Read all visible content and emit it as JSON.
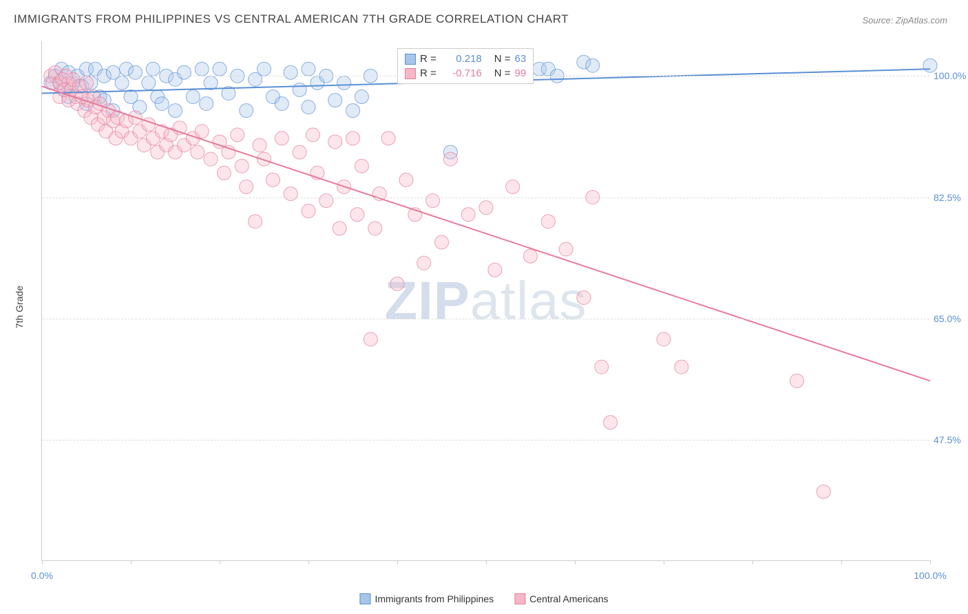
{
  "title": "IMMIGRANTS FROM PHILIPPINES VS CENTRAL AMERICAN 7TH GRADE CORRELATION CHART",
  "source_prefix": "Source: ",
  "source": "ZipAtlas.com",
  "y_axis_label": "7th Grade",
  "watermark_bold": "ZIP",
  "watermark_rest": "atlas",
  "chart": {
    "type": "scatter-with-regression",
    "background_color": "#ffffff",
    "grid_color": "#dddddd",
    "axis_color": "#cccccc",
    "label_color": "#5a8fd6",
    "xlim": [
      0,
      100
    ],
    "ylim": [
      30,
      105
    ],
    "x_ticks": [
      0,
      10,
      20,
      30,
      40,
      50,
      60,
      70,
      80,
      90,
      100
    ],
    "x_tick_labels": {
      "0": "0.0%",
      "100": "100.0%"
    },
    "y_gridlines": [
      47.5,
      65.0,
      82.5,
      100.0
    ],
    "y_tick_labels": {
      "47.5": "47.5%",
      "65.0": "65.0%",
      "82.5": "82.5%",
      "100.0": "100.0%"
    },
    "marker_radius": 10,
    "marker_opacity": 0.35,
    "line_width": 2,
    "series": [
      {
        "name": "Immigrants from Philippines",
        "color": "#5a8fd6",
        "fill": "#a8c5e8",
        "R": "0.218",
        "N": "63",
        "regression": {
          "x1": 0,
          "y1": 97.5,
          "x2": 100,
          "y2": 101.0
        },
        "points": [
          [
            1,
            99
          ],
          [
            1.5,
            100
          ],
          [
            2,
            99
          ],
          [
            2.2,
            101
          ],
          [
            2.5,
            98
          ],
          [
            3,
            100.5
          ],
          [
            3,
            97
          ],
          [
            3.5,
            99
          ],
          [
            4,
            100
          ],
          [
            4.5,
            98.5
          ],
          [
            5,
            101
          ],
          [
            5,
            96
          ],
          [
            5.5,
            99
          ],
          [
            6,
            101
          ],
          [
            6.5,
            97
          ],
          [
            7,
            100
          ],
          [
            7,
            96.5
          ],
          [
            8,
            100.5
          ],
          [
            8,
            95
          ],
          [
            9,
            99
          ],
          [
            9.5,
            101
          ],
          [
            10,
            97
          ],
          [
            10.5,
            100.5
          ],
          [
            11,
            95.5
          ],
          [
            12,
            99
          ],
          [
            12.5,
            101
          ],
          [
            13,
            97
          ],
          [
            13.5,
            96
          ],
          [
            14,
            100
          ],
          [
            15,
            99.5
          ],
          [
            15,
            95
          ],
          [
            16,
            100.5
          ],
          [
            17,
            97
          ],
          [
            18,
            101
          ],
          [
            18.5,
            96
          ],
          [
            19,
            99
          ],
          [
            20,
            101
          ],
          [
            21,
            97.5
          ],
          [
            22,
            100
          ],
          [
            23,
            95
          ],
          [
            24,
            99.5
          ],
          [
            25,
            101
          ],
          [
            26,
            97
          ],
          [
            27,
            96
          ],
          [
            28,
            100.5
          ],
          [
            29,
            98
          ],
          [
            30,
            101
          ],
          [
            30,
            95.5
          ],
          [
            31,
            99
          ],
          [
            32,
            100
          ],
          [
            33,
            96.5
          ],
          [
            34,
            99
          ],
          [
            35,
            95
          ],
          [
            36,
            97
          ],
          [
            37,
            100
          ],
          [
            46,
            89
          ],
          [
            56,
            101
          ],
          [
            57,
            101
          ],
          [
            58,
            100
          ],
          [
            61,
            102
          ],
          [
            62,
            101.5
          ],
          [
            100,
            101.5
          ]
        ]
      },
      {
        "name": "Central Americans",
        "color": "#e67a9a",
        "fill": "#f5b8c9",
        "R": "-0.716",
        "N": "99",
        "regression": {
          "x1": 0,
          "y1": 98.5,
          "x2": 100,
          "y2": 56.0
        },
        "points": [
          [
            1,
            100
          ],
          [
            1.2,
            99
          ],
          [
            1.5,
            100.5
          ],
          [
            2,
            99
          ],
          [
            2,
            97
          ],
          [
            2.3,
            99.5
          ],
          [
            2.5,
            98
          ],
          [
            2.7,
            100
          ],
          [
            3,
            99
          ],
          [
            3,
            96.5
          ],
          [
            3.3,
            98
          ],
          [
            3.5,
            99.5
          ],
          [
            3.8,
            97
          ],
          [
            4,
            96
          ],
          [
            4.2,
            98.5
          ],
          [
            4.5,
            97
          ],
          [
            4.8,
            95
          ],
          [
            5,
            99
          ],
          [
            5.2,
            96.5
          ],
          [
            5.5,
            94
          ],
          [
            5.8,
            97
          ],
          [
            6,
            95.5
          ],
          [
            6.3,
            93
          ],
          [
            6.5,
            96
          ],
          [
            7,
            94
          ],
          [
            7.2,
            92
          ],
          [
            7.5,
            95
          ],
          [
            8,
            93.5
          ],
          [
            8.3,
            91
          ],
          [
            8.5,
            94
          ],
          [
            9,
            92
          ],
          [
            9.5,
            93.5
          ],
          [
            10,
            91
          ],
          [
            10.5,
            94
          ],
          [
            11,
            92
          ],
          [
            11.5,
            90
          ],
          [
            12,
            93
          ],
          [
            12.5,
            91
          ],
          [
            13,
            89
          ],
          [
            13.5,
            92
          ],
          [
            14,
            90
          ],
          [
            14.5,
            91.5
          ],
          [
            15,
            89
          ],
          [
            15.5,
            92.5
          ],
          [
            16,
            90
          ],
          [
            17,
            91
          ],
          [
            17.5,
            89
          ],
          [
            18,
            92
          ],
          [
            19,
            88
          ],
          [
            20,
            90.5
          ],
          [
            20.5,
            86
          ],
          [
            21,
            89
          ],
          [
            22,
            91.5
          ],
          [
            22.5,
            87
          ],
          [
            23,
            84
          ],
          [
            24,
            79
          ],
          [
            24.5,
            90
          ],
          [
            25,
            88
          ],
          [
            26,
            85
          ],
          [
            27,
            91
          ],
          [
            28,
            83
          ],
          [
            29,
            89
          ],
          [
            30,
            80.5
          ],
          [
            30.5,
            91.5
          ],
          [
            31,
            86
          ],
          [
            32,
            82
          ],
          [
            33,
            90.5
          ],
          [
            33.5,
            78
          ],
          [
            34,
            84
          ],
          [
            35,
            91
          ],
          [
            35.5,
            80
          ],
          [
            36,
            87
          ],
          [
            37,
            62
          ],
          [
            37.5,
            78
          ],
          [
            38,
            83
          ],
          [
            39,
            91
          ],
          [
            40,
            70
          ],
          [
            41,
            85
          ],
          [
            42,
            80
          ],
          [
            43,
            73
          ],
          [
            44,
            82
          ],
          [
            45,
            76
          ],
          [
            46,
            88
          ],
          [
            48,
            80
          ],
          [
            50,
            81
          ],
          [
            51,
            72
          ],
          [
            53,
            84
          ],
          [
            55,
            74
          ],
          [
            57,
            79
          ],
          [
            59,
            75
          ],
          [
            61,
            68
          ],
          [
            62,
            82.5
          ],
          [
            63,
            58
          ],
          [
            64,
            50
          ],
          [
            70,
            62
          ],
          [
            72,
            58
          ],
          [
            85,
            56
          ],
          [
            88,
            40
          ]
        ]
      }
    ],
    "stats_legend": {
      "R_label": "R =",
      "N_label": "N ="
    }
  }
}
